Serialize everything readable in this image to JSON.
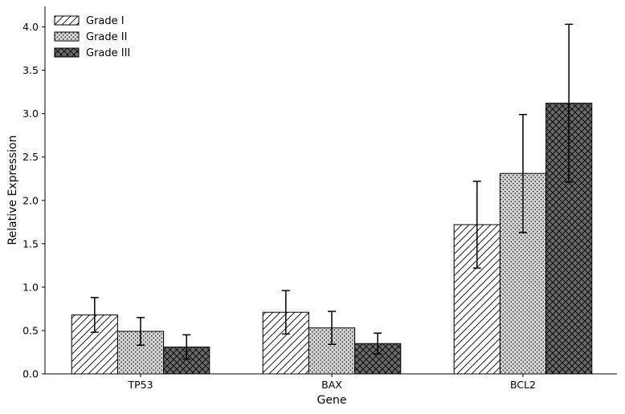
{
  "chart_data": {
    "type": "bar",
    "title": "",
    "xlabel": "Gene",
    "ylabel": "Relative Expression",
    "categories": [
      "TP53",
      "BAX",
      "BCL2"
    ],
    "ylim": [
      0,
      4.2
    ],
    "yticks": [
      "0.0",
      "0.5",
      "1.0",
      "1.5",
      "2.0",
      "2.5",
      "3.0",
      "3.5",
      "4.0"
    ],
    "grid": false,
    "legend_position": "top-left",
    "series": [
      {
        "name": "Grade I",
        "values": [
          0.68,
          0.71,
          1.72
        ],
        "errors": [
          0.2,
          0.25,
          0.5
        ],
        "color": "#ffffff",
        "pattern": "diagonal-hatch"
      },
      {
        "name": "Grade II",
        "values": [
          0.49,
          0.53,
          2.31
        ],
        "errors": [
          0.16,
          0.19,
          0.68
        ],
        "color": "#d3d3d3",
        "pattern": "dots"
      },
      {
        "name": "Grade III",
        "values": [
          0.31,
          0.35,
          3.12
        ],
        "errors": [
          0.14,
          0.12,
          0.91
        ],
        "color": "#696969",
        "pattern": "crosshatch"
      }
    ]
  }
}
